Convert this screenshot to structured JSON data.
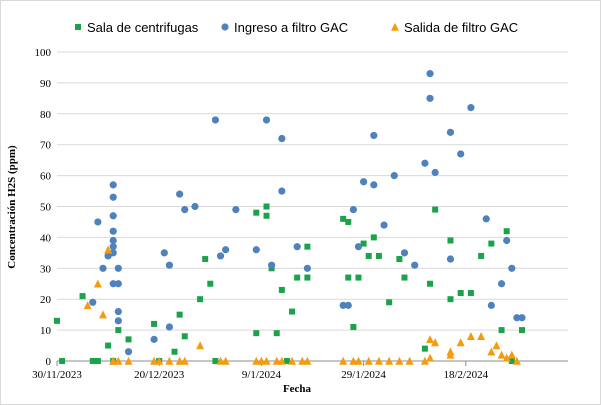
{
  "chart_data": {
    "type": "scatter",
    "title": "",
    "xlabel": "Fecha",
    "ylabel": "Concentración H2S (ppm)",
    "x_axis": {
      "type": "date",
      "range": [
        "2023-11-30",
        "2024-03-09"
      ],
      "tick_dates": [
        "2023-11-30",
        "2023-12-20",
        "2024-01-09",
        "2024-01-29",
        "2024-02-18"
      ],
      "tick_labels": [
        "30/11/2023",
        "20/12/2023",
        "9/1/2024",
        "29/1/2024",
        "18/2/2024"
      ]
    },
    "ylim": [
      0,
      100
    ],
    "y_ticks": [
      0,
      10,
      20,
      30,
      40,
      50,
      60,
      70,
      80,
      90,
      100
    ],
    "grid": "horizontal",
    "legend": {
      "placement": "top"
    },
    "series": [
      {
        "name": "Sala de centrifugas",
        "marker": "square",
        "color": "#1aa34a",
        "points": [
          [
            "2023-11-30",
            13
          ],
          [
            "2023-12-01",
            0
          ],
          [
            "2023-12-05",
            21
          ],
          [
            "2023-12-07",
            0
          ],
          [
            "2023-12-08",
            0
          ],
          [
            "2023-12-10",
            5
          ],
          [
            "2023-12-11",
            0
          ],
          [
            "2023-12-12",
            10
          ],
          [
            "2023-12-14",
            7
          ],
          [
            "2023-12-19",
            12
          ],
          [
            "2023-12-20",
            0
          ],
          [
            "2023-12-23",
            3
          ],
          [
            "2023-12-24",
            15
          ],
          [
            "2023-12-25",
            8
          ],
          [
            "2023-12-28",
            20
          ],
          [
            "2023-12-29",
            33
          ],
          [
            "2023-12-30",
            25
          ],
          [
            "2023-12-31",
            0
          ],
          [
            "2024-01-08",
            48
          ],
          [
            "2024-01-08",
            9
          ],
          [
            "2024-01-10",
            50
          ],
          [
            "2024-01-10",
            47
          ],
          [
            "2024-01-11",
            30
          ],
          [
            "2024-01-12",
            9
          ],
          [
            "2024-01-13",
            23
          ],
          [
            "2024-01-14",
            0
          ],
          [
            "2024-01-15",
            16
          ],
          [
            "2024-01-16",
            27
          ],
          [
            "2024-01-18",
            27
          ],
          [
            "2024-01-18",
            37
          ],
          [
            "2024-01-25",
            46
          ],
          [
            "2024-01-26",
            45
          ],
          [
            "2024-01-26",
            27
          ],
          [
            "2024-01-27",
            11
          ],
          [
            "2024-01-28",
            27
          ],
          [
            "2024-01-29",
            38
          ],
          [
            "2024-01-30",
            34
          ],
          [
            "2024-01-31",
            40
          ],
          [
            "2024-02-01",
            34
          ],
          [
            "2024-02-03",
            19
          ],
          [
            "2024-02-05",
            33
          ],
          [
            "2024-02-06",
            27
          ],
          [
            "2024-02-10",
            4
          ],
          [
            "2024-02-11",
            25
          ],
          [
            "2024-02-12",
            49
          ],
          [
            "2024-02-15",
            39
          ],
          [
            "2024-02-15",
            20
          ],
          [
            "2024-02-17",
            22
          ],
          [
            "2024-02-19",
            22
          ],
          [
            "2024-02-21",
            34
          ],
          [
            "2024-02-23",
            38
          ],
          [
            "2024-02-25",
            10
          ],
          [
            "2024-02-26",
            42
          ],
          [
            "2024-02-27",
            0
          ],
          [
            "2024-02-29",
            10
          ]
        ]
      },
      {
        "name": "Ingreso a filtro GAC",
        "marker": "circle",
        "color": "#4f81bd",
        "points": [
          [
            "2023-12-07",
            19
          ],
          [
            "2023-12-08",
            45
          ],
          [
            "2023-12-09",
            30
          ],
          [
            "2023-12-10",
            34
          ],
          [
            "2023-12-11",
            37
          ],
          [
            "2023-12-11",
            35
          ],
          [
            "2023-12-11",
            39
          ],
          [
            "2023-12-11",
            42
          ],
          [
            "2023-12-11",
            47
          ],
          [
            "2023-12-11",
            53
          ],
          [
            "2023-12-11",
            57
          ],
          [
            "2023-12-11",
            25
          ],
          [
            "2023-12-12",
            25
          ],
          [
            "2023-12-12",
            16
          ],
          [
            "2023-12-12",
            13
          ],
          [
            "2023-12-12",
            30
          ],
          [
            "2023-12-14",
            3
          ],
          [
            "2023-12-19",
            7
          ],
          [
            "2023-12-21",
            35
          ],
          [
            "2023-12-22",
            11
          ],
          [
            "2023-12-22",
            31
          ],
          [
            "2023-12-24",
            54
          ],
          [
            "2023-12-25",
            49
          ],
          [
            "2023-12-27",
            50
          ],
          [
            "2023-12-31",
            78
          ],
          [
            "2024-01-01",
            34
          ],
          [
            "2024-01-02",
            36
          ],
          [
            "2024-01-04",
            49
          ],
          [
            "2024-01-08",
            36
          ],
          [
            "2024-01-10",
            78
          ],
          [
            "2024-01-11",
            31
          ],
          [
            "2024-01-13",
            55
          ],
          [
            "2024-01-13",
            72
          ],
          [
            "2024-01-16",
            37
          ],
          [
            "2024-01-18",
            30
          ],
          [
            "2024-01-25",
            18
          ],
          [
            "2024-01-26",
            18
          ],
          [
            "2024-01-27",
            49
          ],
          [
            "2024-01-28",
            37
          ],
          [
            "2024-01-29",
            58
          ],
          [
            "2024-01-31",
            57
          ],
          [
            "2024-01-31",
            73
          ],
          [
            "2024-02-02",
            44
          ],
          [
            "2024-02-04",
            60
          ],
          [
            "2024-02-06",
            35
          ],
          [
            "2024-02-08",
            31
          ],
          [
            "2024-02-10",
            64
          ],
          [
            "2024-02-11",
            93
          ],
          [
            "2024-02-11",
            85
          ],
          [
            "2024-02-12",
            61
          ],
          [
            "2024-02-15",
            74
          ],
          [
            "2024-02-15",
            33
          ],
          [
            "2024-02-17",
            67
          ],
          [
            "2024-02-19",
            82
          ],
          [
            "2024-02-22",
            46
          ],
          [
            "2024-02-23",
            18
          ],
          [
            "2024-02-25",
            25
          ],
          [
            "2024-02-26",
            39
          ],
          [
            "2024-02-27",
            30
          ],
          [
            "2024-02-28",
            14
          ],
          [
            "2024-02-29",
            14
          ]
        ]
      },
      {
        "name": "Salida de filtro GAC",
        "marker": "triangle",
        "color": "#f39c12",
        "points": [
          [
            "2023-12-06",
            18
          ],
          [
            "2023-12-08",
            25
          ],
          [
            "2023-12-09",
            15
          ],
          [
            "2023-12-10",
            36
          ],
          [
            "2023-12-11",
            0
          ],
          [
            "2023-12-11",
            0
          ],
          [
            "2023-12-12",
            0
          ],
          [
            "2023-12-14",
            0
          ],
          [
            "2023-12-19",
            0
          ],
          [
            "2023-12-20",
            0
          ],
          [
            "2023-12-22",
            0
          ],
          [
            "2023-12-24",
            0
          ],
          [
            "2023-12-25",
            0
          ],
          [
            "2023-12-28",
            5
          ],
          [
            "2024-01-01",
            0
          ],
          [
            "2024-01-02",
            0
          ],
          [
            "2024-01-08",
            0
          ],
          [
            "2024-01-09",
            0
          ],
          [
            "2024-01-10",
            0
          ],
          [
            "2024-01-12",
            0
          ],
          [
            "2024-01-13",
            0
          ],
          [
            "2024-01-15",
            0
          ],
          [
            "2024-01-17",
            0
          ],
          [
            "2024-01-18",
            0
          ],
          [
            "2024-01-25",
            0
          ],
          [
            "2024-01-27",
            0
          ],
          [
            "2024-01-28",
            0
          ],
          [
            "2024-01-30",
            0
          ],
          [
            "2024-02-01",
            0
          ],
          [
            "2024-02-03",
            0
          ],
          [
            "2024-02-05",
            0
          ],
          [
            "2024-02-07",
            0
          ],
          [
            "2024-02-10",
            0
          ],
          [
            "2024-02-11",
            1
          ],
          [
            "2024-02-11",
            7
          ],
          [
            "2024-02-12",
            6
          ],
          [
            "2024-02-15",
            2
          ],
          [
            "2024-02-15",
            3
          ],
          [
            "2024-02-17",
            6
          ],
          [
            "2024-02-19",
            8
          ],
          [
            "2024-02-21",
            8
          ],
          [
            "2024-02-23",
            3
          ],
          [
            "2024-02-24",
            5
          ],
          [
            "2024-02-25",
            2
          ],
          [
            "2024-02-26",
            1
          ],
          [
            "2024-02-27",
            2
          ],
          [
            "2024-02-28",
            0
          ]
        ]
      }
    ]
  }
}
